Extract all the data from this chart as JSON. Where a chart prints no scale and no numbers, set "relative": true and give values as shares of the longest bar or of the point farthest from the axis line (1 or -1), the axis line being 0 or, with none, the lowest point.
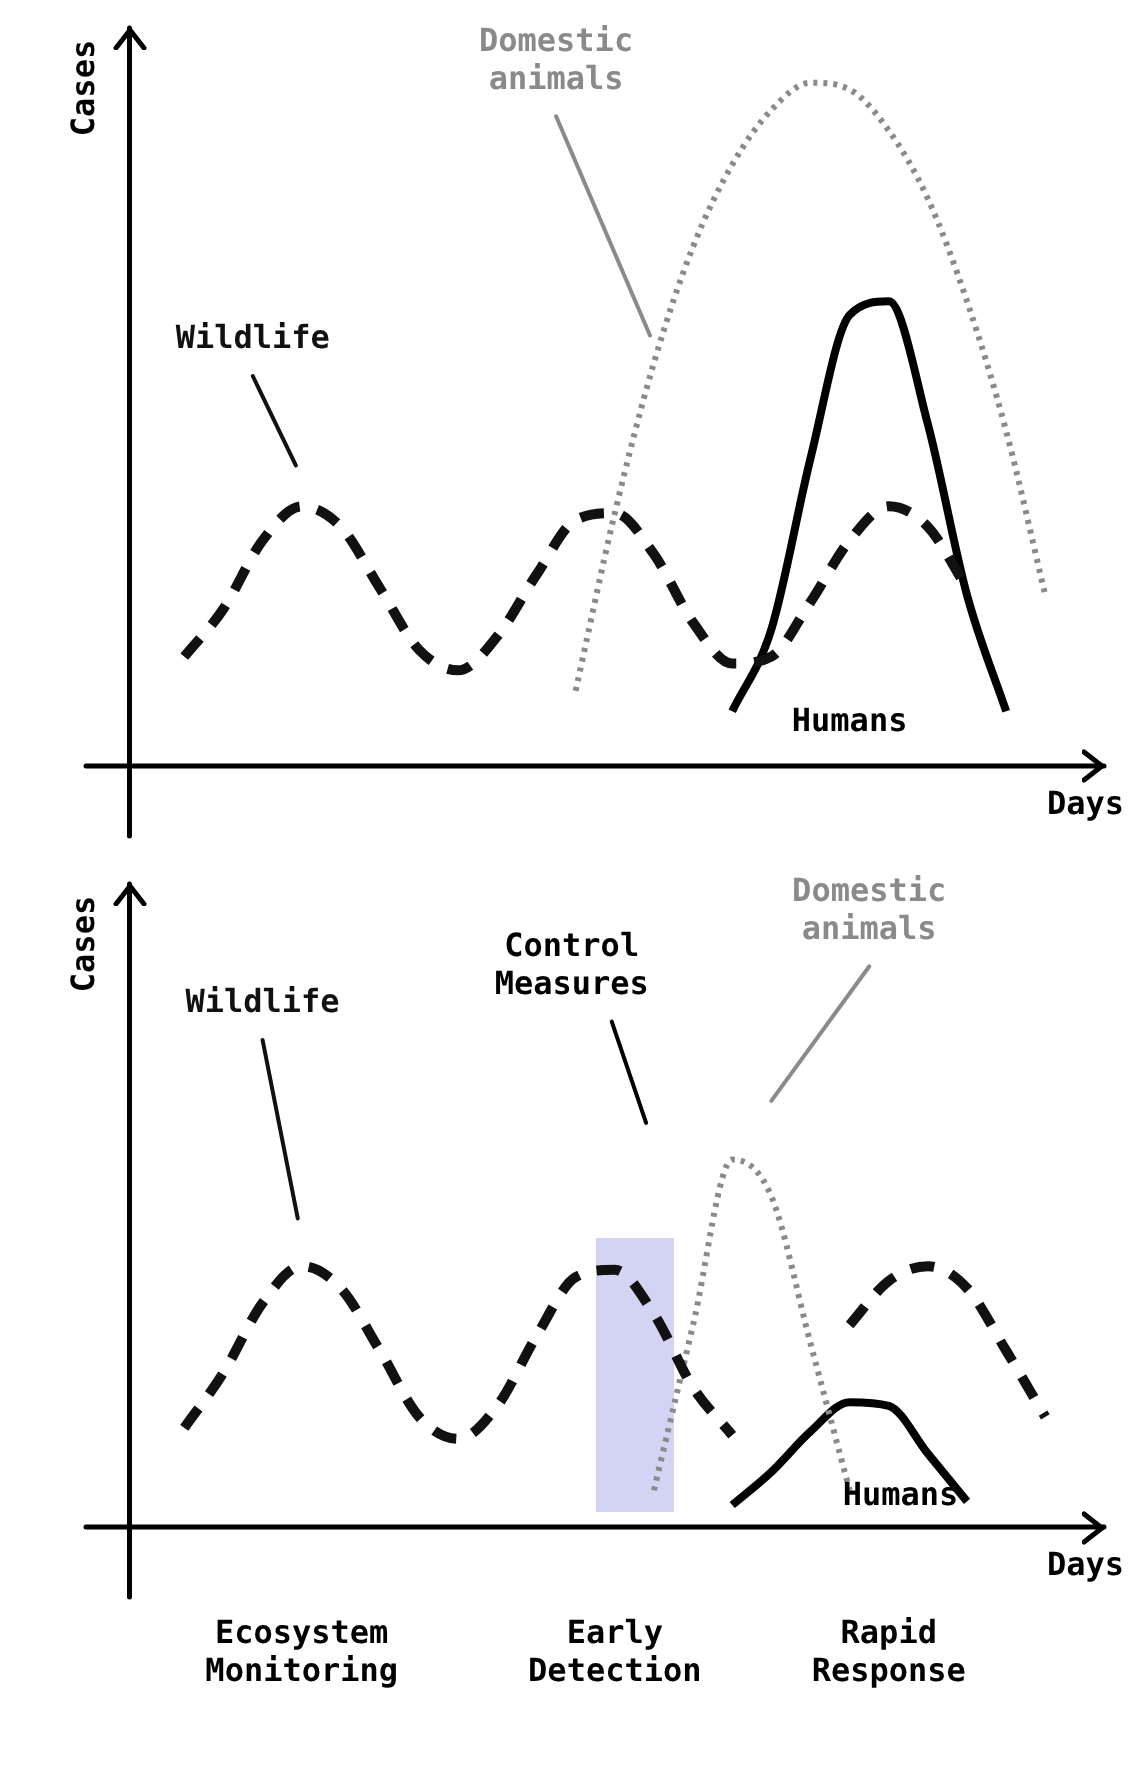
{
  "chart_data": [
    {
      "type": "line",
      "relative": true,
      "xlabel": "Days",
      "ylabel": "Cases",
      "legend": false,
      "tick_labels": false,
      "marker": "none",
      "categories": [
        null,
        null,
        null,
        null,
        null,
        null,
        null,
        null,
        null,
        null,
        null,
        null,
        null,
        null,
        null,
        null,
        null,
        null,
        null,
        null,
        null,
        null,
        null,
        null,
        null
      ],
      "series": [
        {
          "name": "Wildlife",
          "color": "#111111",
          "line_style": "dashed",
          "values": [
            null,
            0.16,
            0.23,
            0.33,
            0.38,
            0.35,
            0.26,
            0.17,
            0.14,
            0.19,
            0.28,
            0.36,
            0.37,
            0.31,
            0.21,
            0.15,
            0.16,
            0.24,
            0.33,
            0.38,
            0.35,
            0.26,
            null,
            null,
            null
          ]
        },
        {
          "name": "Domestic animals",
          "color": "#8a8a8a",
          "line_style": "dotted",
          "values": [
            null,
            null,
            null,
            null,
            null,
            null,
            null,
            null,
            null,
            null,
            null,
            0.11,
            0.37,
            0.59,
            0.76,
            0.88,
            0.96,
            1,
            0.99,
            0.93,
            0.83,
            0.68,
            0.49,
            0.25,
            null
          ]
        },
        {
          "name": "Humans",
          "color": "#000000",
          "line_style": "solid",
          "values": [
            null,
            null,
            null,
            null,
            null,
            null,
            null,
            null,
            null,
            null,
            null,
            null,
            null,
            null,
            null,
            0.08,
            0.2,
            0.45,
            0.66,
            0.68,
            0.5,
            0.25,
            0.08,
            null,
            null
          ]
        }
      ]
    },
    {
      "type": "line",
      "relative": true,
      "xlabel": "Days",
      "ylabel": "Cases",
      "legend": false,
      "tick_labels": "x",
      "marker": "none",
      "categories": [
        null,
        null,
        null,
        null,
        "Ecosystem Monitoring",
        null,
        null,
        null,
        null,
        null,
        null,
        null,
        "Early Detection",
        null,
        null,
        null,
        null,
        null,
        null,
        "Rapid Response",
        null,
        null,
        null,
        null,
        null
      ],
      "series": [
        {
          "name": "Wildlife",
          "color": "#111111",
          "line_style": "dashed",
          "values": [
            null,
            0.27,
            0.42,
            0.61,
            0.71,
            0.65,
            0.48,
            0.3,
            0.24,
            0.33,
            0.52,
            0.68,
            0.7,
            0.58,
            0.38,
            0.25,
            null,
            null,
            0.55,
            0.67,
            0.71,
            0.65,
            0.48,
            0.3,
            null
          ]
        },
        {
          "name": "Domestic animals",
          "color": "#8a8a8a",
          "line_style": "dotted",
          "values": [
            null,
            null,
            null,
            null,
            null,
            null,
            null,
            null,
            null,
            null,
            null,
            null,
            null,
            0.1,
            0.55,
            1,
            0.9,
            0.5,
            0.1,
            null,
            null,
            null,
            null,
            null,
            null
          ]
        },
        {
          "name": "Humans",
          "color": "#000000",
          "line_style": "solid",
          "values": [
            null,
            null,
            null,
            null,
            null,
            null,
            null,
            null,
            null,
            null,
            null,
            null,
            null,
            null,
            null,
            0.06,
            0.15,
            0.26,
            0.34,
            0.33,
            0.2,
            0.07,
            null,
            null,
            null
          ]
        }
      ],
      "annotations": [
        "Control Measures"
      ]
    }
  ]
}
